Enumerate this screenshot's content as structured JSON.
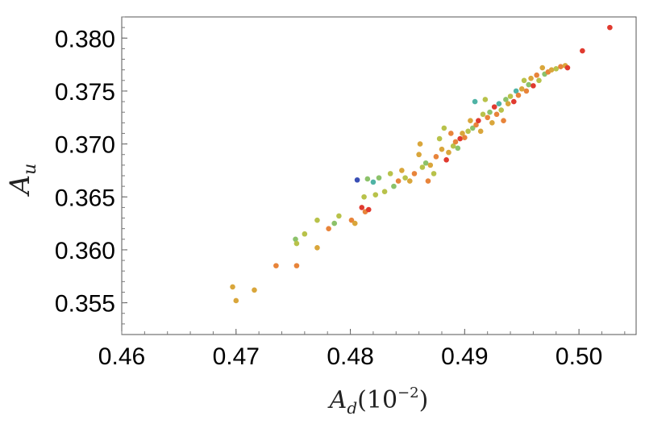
{
  "chart_data": {
    "type": "scatter",
    "title": "",
    "xlabel": "A_d(10^-2)",
    "ylabel": "A_u",
    "xlim": [
      0.46,
      0.505
    ],
    "ylim": [
      0.352,
      0.382
    ],
    "xticks": [
      "0.46",
      "0.47",
      "0.48",
      "0.49",
      "0.50"
    ],
    "yticks": [
      "0.355",
      "0.360",
      "0.365",
      "0.370",
      "0.375",
      "0.380"
    ],
    "grid": false,
    "legend": "none",
    "colors": {
      "red": "#e03a2f",
      "orange": "#e8843a",
      "amber": "#d9a63b",
      "olive": "#b8c24a",
      "green": "#8cc26a",
      "teal": "#4fb3a5",
      "blue": "#3a4fb5"
    },
    "points": [
      {
        "x": 0.4697,
        "y": 0.3565,
        "c": "amber"
      },
      {
        "x": 0.47,
        "y": 0.3552,
        "c": "amber"
      },
      {
        "x": 0.4716,
        "y": 0.3562,
        "c": "amber"
      },
      {
        "x": 0.4735,
        "y": 0.3585,
        "c": "orange"
      },
      {
        "x": 0.4753,
        "y": 0.3585,
        "c": "orange"
      },
      {
        "x": 0.4752,
        "y": 0.361,
        "c": "green"
      },
      {
        "x": 0.4753,
        "y": 0.3606,
        "c": "olive"
      },
      {
        "x": 0.476,
        "y": 0.3615,
        "c": "olive"
      },
      {
        "x": 0.4771,
        "y": 0.3602,
        "c": "amber"
      },
      {
        "x": 0.4771,
        "y": 0.3628,
        "c": "olive"
      },
      {
        "x": 0.4781,
        "y": 0.362,
        "c": "orange"
      },
      {
        "x": 0.4786,
        "y": 0.3625,
        "c": "green"
      },
      {
        "x": 0.479,
        "y": 0.3632,
        "c": "olive"
      },
      {
        "x": 0.4801,
        "y": 0.3628,
        "c": "orange"
      },
      {
        "x": 0.4804,
        "y": 0.3625,
        "c": "amber"
      },
      {
        "x": 0.4806,
        "y": 0.3666,
        "c": "blue"
      },
      {
        "x": 0.481,
        "y": 0.364,
        "c": "red"
      },
      {
        "x": 0.4812,
        "y": 0.365,
        "c": "olive"
      },
      {
        "x": 0.4813,
        "y": 0.3636,
        "c": "orange"
      },
      {
        "x": 0.4815,
        "y": 0.3667,
        "c": "green"
      },
      {
        "x": 0.4816,
        "y": 0.3638,
        "c": "red"
      },
      {
        "x": 0.482,
        "y": 0.3664,
        "c": "teal"
      },
      {
        "x": 0.4822,
        "y": 0.3652,
        "c": "olive"
      },
      {
        "x": 0.4825,
        "y": 0.3668,
        "c": "green"
      },
      {
        "x": 0.483,
        "y": 0.3655,
        "c": "olive"
      },
      {
        "x": 0.4835,
        "y": 0.3672,
        "c": "olive"
      },
      {
        "x": 0.4838,
        "y": 0.366,
        "c": "green"
      },
      {
        "x": 0.4842,
        "y": 0.3665,
        "c": "orange"
      },
      {
        "x": 0.4845,
        "y": 0.3675,
        "c": "amber"
      },
      {
        "x": 0.4848,
        "y": 0.3668,
        "c": "olive"
      },
      {
        "x": 0.4852,
        "y": 0.3665,
        "c": "amber"
      },
      {
        "x": 0.4856,
        "y": 0.3672,
        "c": "orange"
      },
      {
        "x": 0.486,
        "y": 0.369,
        "c": "amber"
      },
      {
        "x": 0.4861,
        "y": 0.37,
        "c": "amber"
      },
      {
        "x": 0.4863,
        "y": 0.3678,
        "c": "olive"
      },
      {
        "x": 0.4866,
        "y": 0.3682,
        "c": "green"
      },
      {
        "x": 0.4868,
        "y": 0.3665,
        "c": "orange"
      },
      {
        "x": 0.487,
        "y": 0.368,
        "c": "amber"
      },
      {
        "x": 0.4873,
        "y": 0.3672,
        "c": "olive"
      },
      {
        "x": 0.4875,
        "y": 0.3688,
        "c": "orange"
      },
      {
        "x": 0.4878,
        "y": 0.3705,
        "c": "olive"
      },
      {
        "x": 0.488,
        "y": 0.3695,
        "c": "amber"
      },
      {
        "x": 0.4882,
        "y": 0.3715,
        "c": "olive"
      },
      {
        "x": 0.4884,
        "y": 0.3685,
        "c": "red"
      },
      {
        "x": 0.4886,
        "y": 0.3692,
        "c": "amber"
      },
      {
        "x": 0.4888,
        "y": 0.371,
        "c": "orange"
      },
      {
        "x": 0.489,
        "y": 0.3698,
        "c": "olive"
      },
      {
        "x": 0.4892,
        "y": 0.3702,
        "c": "orange"
      },
      {
        "x": 0.4894,
        "y": 0.3696,
        "c": "green"
      },
      {
        "x": 0.4896,
        "y": 0.3705,
        "c": "red"
      },
      {
        "x": 0.4898,
        "y": 0.371,
        "c": "amber"
      },
      {
        "x": 0.49,
        "y": 0.3706,
        "c": "orange"
      },
      {
        "x": 0.4903,
        "y": 0.3712,
        "c": "olive"
      },
      {
        "x": 0.4905,
        "y": 0.3722,
        "c": "amber"
      },
      {
        "x": 0.4907,
        "y": 0.3715,
        "c": "green"
      },
      {
        "x": 0.4909,
        "y": 0.374,
        "c": "teal"
      },
      {
        "x": 0.491,
        "y": 0.3718,
        "c": "orange"
      },
      {
        "x": 0.4912,
        "y": 0.3722,
        "c": "red"
      },
      {
        "x": 0.4914,
        "y": 0.3712,
        "c": "amber"
      },
      {
        "x": 0.4916,
        "y": 0.3728,
        "c": "olive"
      },
      {
        "x": 0.4918,
        "y": 0.3742,
        "c": "olive"
      },
      {
        "x": 0.492,
        "y": 0.3725,
        "c": "orange"
      },
      {
        "x": 0.4922,
        "y": 0.373,
        "c": "green"
      },
      {
        "x": 0.4924,
        "y": 0.372,
        "c": "amber"
      },
      {
        "x": 0.4926,
        "y": 0.3735,
        "c": "red"
      },
      {
        "x": 0.4928,
        "y": 0.3728,
        "c": "orange"
      },
      {
        "x": 0.493,
        "y": 0.3738,
        "c": "teal"
      },
      {
        "x": 0.4932,
        "y": 0.3732,
        "c": "olive"
      },
      {
        "x": 0.4934,
        "y": 0.3722,
        "c": "orange"
      },
      {
        "x": 0.4936,
        "y": 0.3742,
        "c": "green"
      },
      {
        "x": 0.4938,
        "y": 0.3738,
        "c": "amber"
      },
      {
        "x": 0.494,
        "y": 0.3745,
        "c": "olive"
      },
      {
        "x": 0.4943,
        "y": 0.374,
        "c": "red"
      },
      {
        "x": 0.4945,
        "y": 0.375,
        "c": "teal"
      },
      {
        "x": 0.4947,
        "y": 0.3746,
        "c": "orange"
      },
      {
        "x": 0.495,
        "y": 0.3752,
        "c": "amber"
      },
      {
        "x": 0.4952,
        "y": 0.376,
        "c": "olive"
      },
      {
        "x": 0.4954,
        "y": 0.375,
        "c": "orange"
      },
      {
        "x": 0.4956,
        "y": 0.3756,
        "c": "green"
      },
      {
        "x": 0.4958,
        "y": 0.3762,
        "c": "amber"
      },
      {
        "x": 0.496,
        "y": 0.3755,
        "c": "red"
      },
      {
        "x": 0.4963,
        "y": 0.3765,
        "c": "orange"
      },
      {
        "x": 0.4965,
        "y": 0.376,
        "c": "olive"
      },
      {
        "x": 0.4968,
        "y": 0.3772,
        "c": "amber"
      },
      {
        "x": 0.497,
        "y": 0.3766,
        "c": "green"
      },
      {
        "x": 0.4973,
        "y": 0.3768,
        "c": "orange"
      },
      {
        "x": 0.4976,
        "y": 0.377,
        "c": "amber"
      },
      {
        "x": 0.498,
        "y": 0.3771,
        "c": "olive"
      },
      {
        "x": 0.4984,
        "y": 0.3773,
        "c": "orange"
      },
      {
        "x": 0.4988,
        "y": 0.3774,
        "c": "amber"
      },
      {
        "x": 0.499,
        "y": 0.3772,
        "c": "red"
      },
      {
        "x": 0.5003,
        "y": 0.3788,
        "c": "red"
      },
      {
        "x": 0.5027,
        "y": 0.381,
        "c": "red"
      }
    ]
  }
}
